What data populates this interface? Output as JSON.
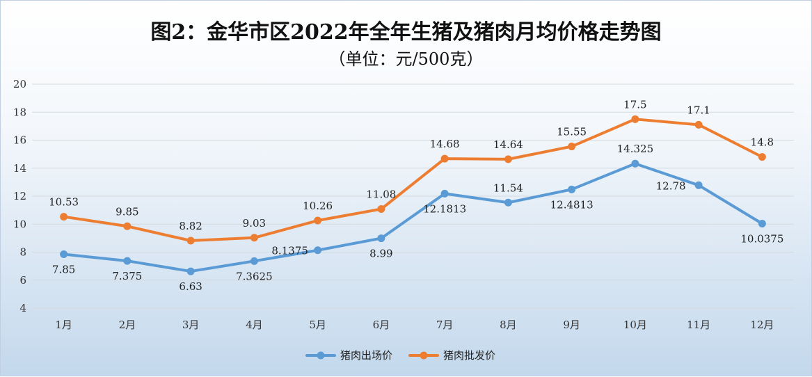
{
  "chart_data": {
    "type": "line",
    "title": "图2：金华市区2022年全年生猪及猪肉月均价格走势图",
    "subtitle": "（单位：元/500克）",
    "categories": [
      "1月",
      "2月",
      "3月",
      "4月",
      "5月",
      "6月",
      "7月",
      "8月",
      "9月",
      "10月",
      "11月",
      "12月"
    ],
    "ylim": [
      4,
      20
    ],
    "yticks": [
      4,
      6,
      8,
      10,
      12,
      14,
      16,
      18,
      20
    ],
    "grid": true,
    "legend_position": "bottom",
    "series": [
      {
        "name": "猪肉出场价",
        "color": "#5b9bd5",
        "values": [
          7.85,
          7.375,
          6.63,
          7.3625,
          8.1375,
          8.99,
          12.1813,
          11.54,
          12.4813,
          14.325,
          12.78,
          10.0375
        ],
        "labels": [
          "7.85",
          "7.375",
          "6.63",
          "7.3625",
          "8.1375",
          "8.99",
          "12.1813",
          "11.54",
          "12.4813",
          "14.325",
          "12.78",
          "10.0375"
        ],
        "label_position": [
          "below",
          "below",
          "below",
          "below",
          "left-on",
          "below",
          "below",
          "above",
          "below",
          "above",
          "left-on",
          "below"
        ]
      },
      {
        "name": "猪肉批发价",
        "color": "#ed7d31",
        "values": [
          10.53,
          9.85,
          8.82,
          9.03,
          10.26,
          11.08,
          14.68,
          14.64,
          15.55,
          17.5,
          17.1,
          14.8
        ],
        "labels": [
          "10.53",
          "9.85",
          "8.82",
          "9.03",
          "10.26",
          "11.08",
          "14.68",
          "14.64",
          "15.55",
          "17.5",
          "17.1",
          "14.8"
        ],
        "label_position": [
          "above",
          "above",
          "above",
          "above",
          "above",
          "above",
          "above",
          "above",
          "above",
          "above",
          "above",
          "above"
        ]
      }
    ]
  }
}
